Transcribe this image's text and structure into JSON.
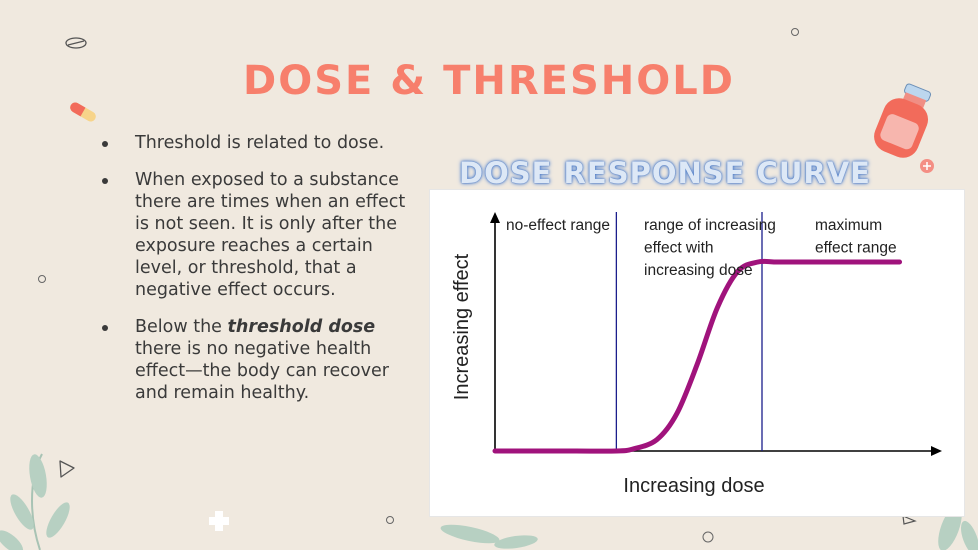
{
  "slide": {
    "title": "DOSE & THRESHOLD",
    "subtitle": "DOSE RESPONSE CURVE",
    "bullets": [
      {
        "text": "Threshold is related to dose."
      },
      {
        "text": "When exposed to a substance there are times when an effect is not seen. It is only after the exposure reaches a certain level, or threshold, that a negative effect occurs."
      },
      {
        "prefix": "Below the ",
        "emphasis": "threshold dose",
        "suffix": " there is no negative health effect—the body can recover and remain healthy."
      }
    ],
    "colors": {
      "title": "#f77f6c",
      "background": "#f0e9df",
      "curve": "#a0137c",
      "divider": "#1b1e8c"
    }
  },
  "chart_data": {
    "type": "line",
    "xlabel": "Increasing dose",
    "ylabel": "Increasing effect",
    "regions": [
      {
        "lines": [
          "no-effect range"
        ]
      },
      {
        "lines": [
          "range of increasing",
          "effect with",
          "increasing dose"
        ]
      },
      {
        "lines": [
          "maximum",
          "effect range"
        ]
      }
    ],
    "x": [
      0,
      0.1,
      0.2,
      0.3,
      0.34,
      0.4,
      0.45,
      0.5,
      0.55,
      0.6,
      0.65,
      0.7,
      0.8,
      0.9,
      1.0
    ],
    "y": [
      0,
      0,
      0,
      0,
      0.01,
      0.06,
      0.2,
      0.46,
      0.76,
      0.95,
      1.0,
      1.0,
      1.0,
      1.0,
      1.0
    ],
    "thresholds": [
      0.3,
      0.66
    ],
    "xlim": [
      0,
      1.1
    ],
    "ylim": [
      0,
      1.2
    ],
    "grid": false
  }
}
